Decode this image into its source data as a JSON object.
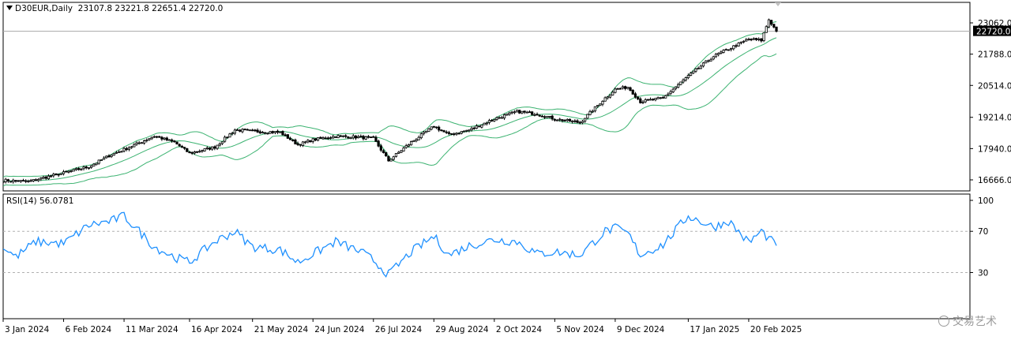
{
  "header": {
    "symbol": "D30EUR,Daily",
    "ohlc": "23107.8 23221.8 22651.4 22720.0"
  },
  "rsi_header": {
    "label": "RSI(14) 56.0781"
  },
  "watermark": {
    "text": "交易艺术",
    "icon": "wechat-icon"
  },
  "colors": {
    "band": "#3cb371",
    "rsi": "#1e90ff",
    "price_line": "#a9a9a9",
    "current_box": "#000000",
    "candle": "#000000"
  },
  "chart_data": [
    {
      "type": "candlestick",
      "title": "D30EUR,Daily",
      "price_ticks": [
        "23062.0",
        "21788.0",
        "20514.0",
        "19214.0",
        "17940.0",
        "16666.0"
      ],
      "price_tick_values": [
        23062.0,
        21788.0,
        20514.0,
        19214.0,
        17940.0,
        16666.0
      ],
      "current_price_label": "22720.0",
      "current_price": 22720.0,
      "ylim": [
        16420,
        23720
      ],
      "x_tick_labels": [
        "3 Jan 2024",
        "6 Feb 2024",
        "11 Mar 2024",
        "16 Apr 2024",
        "21 May 2024",
        "24 Jun 2024",
        "26 Jul 2024",
        "29 Aug 2024",
        "2 Oct 2024",
        "5 Nov 2024",
        "9 Dec 2024",
        "17 Jan 2025",
        "20 Feb 2025"
      ],
      "overlay": "Bollinger Bands",
      "close_anchors": [
        [
          "2024-01-03",
          16650
        ],
        [
          "2024-01-17",
          16600
        ],
        [
          "2024-02-06",
          16950
        ],
        [
          "2024-02-20",
          17200
        ],
        [
          "2024-03-04",
          17700
        ],
        [
          "2024-03-11",
          17900
        ],
        [
          "2024-03-27",
          18450
        ],
        [
          "2024-04-08",
          18200
        ],
        [
          "2024-04-16",
          17750
        ],
        [
          "2024-04-30",
          18000
        ],
        [
          "2024-05-10",
          18700
        ],
        [
          "2024-05-21",
          18650
        ],
        [
          "2024-06-05",
          18600
        ],
        [
          "2024-06-14",
          18100
        ],
        [
          "2024-06-24",
          18300
        ],
        [
          "2024-07-05",
          18450
        ],
        [
          "2024-07-19",
          18400
        ],
        [
          "2024-07-26",
          18350
        ],
        [
          "2024-08-05",
          17450
        ],
        [
          "2024-08-16",
          18200
        ],
        [
          "2024-08-29",
          18850
        ],
        [
          "2024-09-06",
          18500
        ],
        [
          "2024-09-18",
          18700
        ],
        [
          "2024-10-02",
          19150
        ],
        [
          "2024-10-15",
          19450
        ],
        [
          "2024-10-25",
          19350
        ],
        [
          "2024-11-05",
          19150
        ],
        [
          "2024-11-19",
          19000
        ],
        [
          "2024-12-03",
          20000
        ],
        [
          "2024-12-09",
          20350
        ],
        [
          "2024-12-16",
          20450
        ],
        [
          "2024-12-23",
          19850
        ],
        [
          "2025-01-03",
          20000
        ],
        [
          "2025-01-17",
          20900
        ],
        [
          "2025-01-31",
          21700
        ],
        [
          "2025-02-10",
          22000
        ],
        [
          "2025-02-20",
          22400
        ],
        [
          "2025-02-27",
          22350
        ],
        [
          "2025-03-04",
          23200
        ],
        [
          "2025-03-07",
          22720
        ]
      ]
    },
    {
      "type": "line",
      "title": "RSI(14) 56.0781",
      "ylim": [
        0,
        100
      ],
      "y_ticks": [
        "100",
        "70",
        "30"
      ],
      "y_tick_values": [
        100,
        70,
        30
      ],
      "levels": [
        70,
        30
      ],
      "last_value": 56.0781,
      "series": [
        {
          "points": [
            [
              "2024-01-03",
              55
            ],
            [
              "2024-01-10",
              45
            ],
            [
              "2024-01-22",
              60
            ],
            [
              "2024-02-06",
              58
            ],
            [
              "2024-02-20",
              76
            ],
            [
              "2024-03-04",
              80
            ],
            [
              "2024-03-11",
              85
            ],
            [
              "2024-03-27",
              55
            ],
            [
              "2024-04-08",
              45
            ],
            [
              "2024-04-16",
              40
            ],
            [
              "2024-04-30",
              60
            ],
            [
              "2024-05-10",
              70
            ],
            [
              "2024-05-21",
              55
            ],
            [
              "2024-06-05",
              52
            ],
            [
              "2024-06-14",
              40
            ],
            [
              "2024-06-24",
              48
            ],
            [
              "2024-07-05",
              60
            ],
            [
              "2024-07-19",
              50
            ],
            [
              "2024-07-26",
              42
            ],
            [
              "2024-08-05",
              28
            ],
            [
              "2024-08-16",
              50
            ],
            [
              "2024-08-29",
              65
            ],
            [
              "2024-09-06",
              47
            ],
            [
              "2024-09-18",
              56
            ],
            [
              "2024-10-02",
              62
            ],
            [
              "2024-10-15",
              60
            ],
            [
              "2024-10-25",
              48
            ],
            [
              "2024-11-05",
              50
            ],
            [
              "2024-11-19",
              47
            ],
            [
              "2024-12-03",
              70
            ],
            [
              "2024-12-09",
              73
            ],
            [
              "2024-12-16",
              68
            ],
            [
              "2024-12-23",
              47
            ],
            [
              "2025-01-03",
              57
            ],
            [
              "2025-01-17",
              85
            ],
            [
              "2025-01-31",
              74
            ],
            [
              "2025-02-10",
              80
            ],
            [
              "2025-02-20",
              59
            ],
            [
              "2025-02-27",
              70
            ],
            [
              "2025-03-04",
              63
            ],
            [
              "2025-03-07",
              56.0781
            ]
          ]
        }
      ]
    }
  ]
}
